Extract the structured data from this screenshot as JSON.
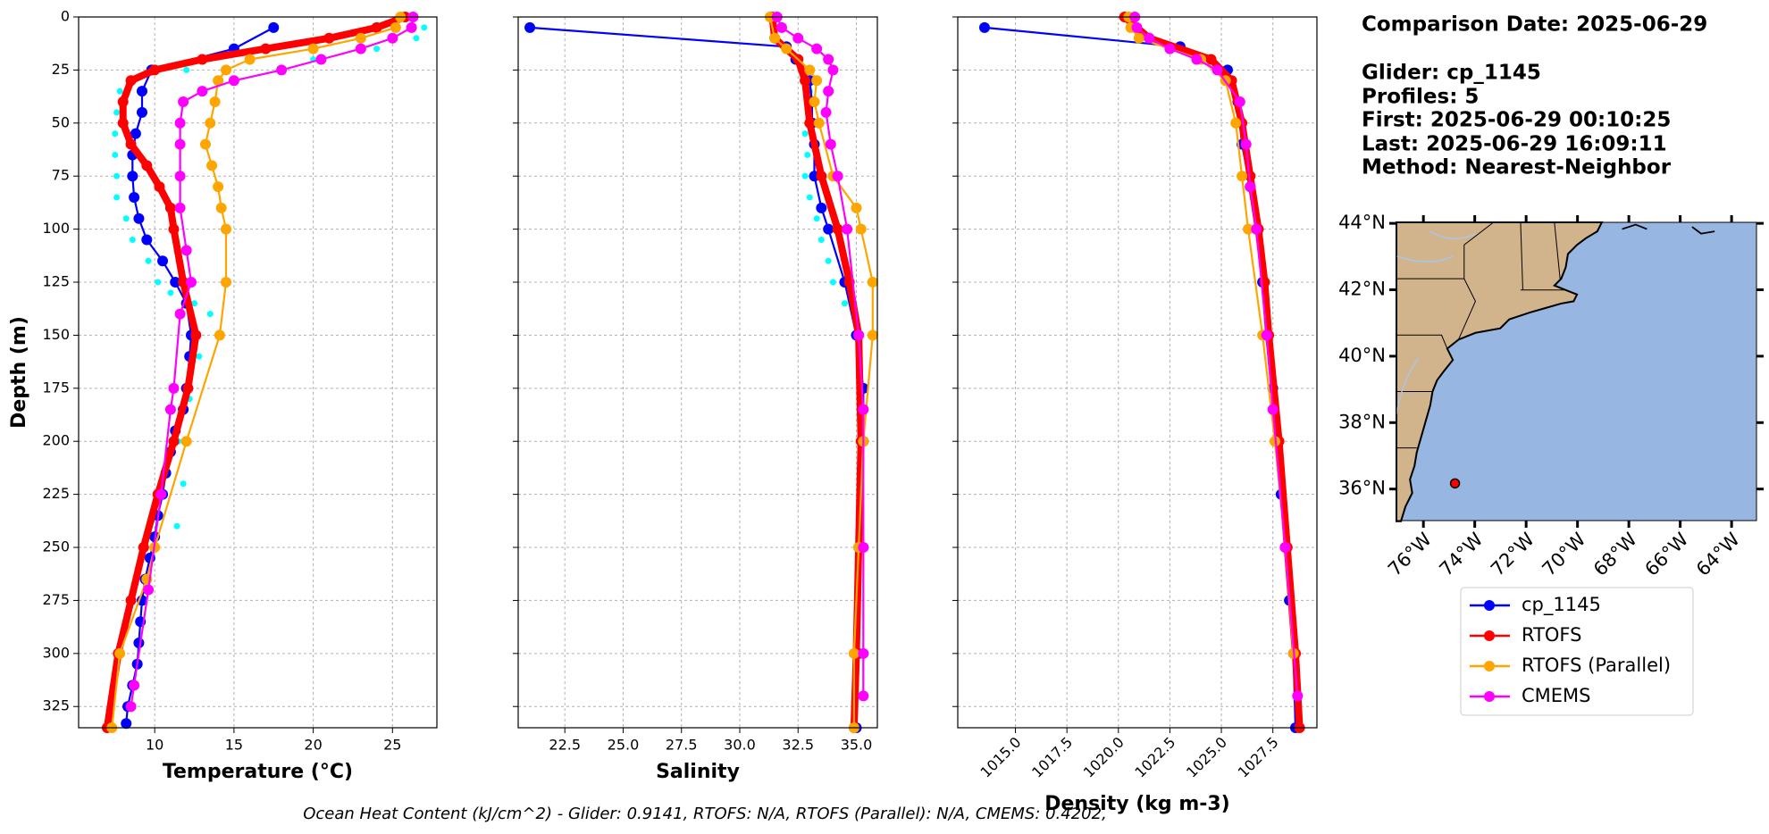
{
  "chart_data": [
    {
      "type": "line",
      "x_label": "Temperature (°C)",
      "y_label": "Depth (m)",
      "xlim": [
        5.2,
        27.8
      ],
      "xticks": [
        10,
        15,
        20,
        25
      ],
      "ylim": [
        335,
        0
      ],
      "yticks": [
        0,
        25,
        50,
        75,
        100,
        125,
        150,
        175,
        200,
        225,
        250,
        275,
        300,
        325
      ],
      "grid": true,
      "xtick_rotation": 0,
      "profile_points": {
        "color": "#00ffff",
        "x": [
          27,
          26.5,
          24,
          20,
          12,
          8.5,
          7.8,
          7.6,
          7.5,
          7.5,
          7.6,
          7.6,
          8.2,
          8.6,
          9.6,
          10.2,
          11,
          12.5,
          13.5,
          12.8,
          12.2,
          11.5,
          11.8,
          11.4
        ],
        "values": [
          5,
          10,
          15,
          20,
          25,
          30,
          35,
          45,
          55,
          65,
          75,
          85,
          95,
          105,
          115,
          125,
          130,
          135,
          140,
          160,
          180,
          200,
          220,
          240
        ]
      },
      "series": [
        {
          "name": "cp_1145",
          "color": "#0000ff",
          "x": [
            17.5,
            15,
            9.8,
            9.2,
            9.2,
            8.8,
            8.6,
            8.6,
            8.7,
            9.0,
            9.5,
            10.5,
            11.3,
            12,
            12.3,
            12.2,
            12,
            11.8,
            11.3,
            11,
            10.7,
            10.5,
            10.2,
            10,
            9.7,
            9.4,
            9.2,
            9.1,
            9.0,
            8.9,
            8.6,
            8.3,
            8.2
          ],
          "values": [
            5,
            15,
            25,
            35,
            45,
            55,
            65,
            75,
            85,
            95,
            105,
            115,
            125,
            135,
            150,
            160,
            175,
            185,
            195,
            205,
            215,
            225,
            235,
            245,
            255,
            265,
            275,
            285,
            295,
            305,
            315,
            325,
            333
          ]
        },
        {
          "name": "RTOFS",
          "color": "#ff0000",
          "x": [
            25.8,
            24,
            21,
            17,
            13,
            10,
            8.5,
            8,
            8,
            8.5,
            9.5,
            10.3,
            11,
            11.2,
            11.8,
            12.6,
            12.1,
            11.2,
            10.2,
            9.3,
            8.5,
            7.7,
            7
          ],
          "values": [
            0,
            5,
            10,
            15,
            20,
            25,
            30,
            40,
            50,
            60,
            70,
            80,
            90,
            100,
            125,
            150,
            175,
            200,
            225,
            250,
            275,
            300,
            335
          ]
        },
        {
          "name": "RTOFS (Parallel)",
          "color": "#ffa500",
          "x": [
            25.5,
            25.2,
            23,
            20,
            16,
            14.5,
            14,
            13.8,
            13.5,
            13.2,
            13.6,
            14,
            14.2,
            14.5,
            14.5,
            14.1,
            12,
            10,
            9.5,
            7.8,
            7.3
          ],
          "values": [
            0,
            5,
            10,
            15,
            20,
            25,
            30,
            40,
            50,
            60,
            70,
            80,
            90,
            100,
            125,
            150,
            200,
            250,
            265,
            300,
            335
          ]
        },
        {
          "name": "CMEMS",
          "color": "#ff00ff",
          "x": [
            26.3,
            26.2,
            25,
            23,
            20.5,
            18,
            15,
            13,
            11.8,
            11.6,
            11.6,
            11.6,
            11.6,
            12,
            12.3,
            11.6,
            11.2,
            11,
            10.4,
            9.6,
            8.7,
            8.5
          ],
          "values": [
            0,
            5,
            10,
            15,
            20,
            25,
            30,
            35,
            40,
            50,
            60,
            75,
            90,
            110,
            125,
            140,
            175,
            185,
            225,
            270,
            315,
            325
          ]
        }
      ]
    },
    {
      "type": "line",
      "x_label": "Salinity",
      "xlim": [
        20.5,
        35.9
      ],
      "xticks": [
        22.5,
        {
          "value": 25,
          "label": "25.0"
        },
        27.5,
        {
          "value": 30,
          "label": "30.0"
        },
        32.5,
        {
          "value": 35,
          "label": "35.0"
        }
      ],
      "ylim": [
        335,
        0
      ],
      "yticks": [
        0,
        25,
        50,
        75,
        100,
        125,
        150,
        175,
        200,
        225,
        250,
        275,
        300,
        325
      ],
      "grid": true,
      "xtick_rotation": 0,
      "profile_points": {
        "color": "#00ffff",
        "x": [
          33,
          33,
          32.8,
          32.9,
          32.8,
          33,
          33.3,
          33.5,
          33.8,
          34,
          34.5
        ],
        "values": [
          35,
          45,
          55,
          65,
          75,
          85,
          95,
          105,
          115,
          125,
          135
        ]
      },
      "series": [
        {
          "name": "cp_1145",
          "color": "#0000ff",
          "x": [
            21.0,
            32.0,
            32.4,
            33,
            33.1,
            33.1,
            33.2,
            33.2,
            33.5,
            33.8,
            34.5,
            35.0,
            35.3,
            35.3,
            35.2,
            35.1,
            35.0
          ],
          "values": [
            5,
            14,
            20,
            30,
            40,
            50,
            60,
            75,
            90,
            100,
            125,
            150,
            175,
            200,
            250,
            300,
            335
          ]
        },
        {
          "name": "RTOFS",
          "color": "#ff0000",
          "x": [
            31.4,
            31.5,
            32.5,
            32.8,
            33.0,
            33.5,
            34.2,
            34.7,
            35.1,
            35.2,
            35.1,
            35.0,
            34.9
          ],
          "values": [
            0,
            10,
            20,
            30,
            50,
            75,
            100,
            125,
            150,
            200,
            250,
            300,
            335
          ]
        },
        {
          "name": "RTOFS (Parallel)",
          "color": "#ffa500",
          "x": [
            31.3,
            31.5,
            32,
            33,
            33.3,
            33.2,
            33.4,
            34,
            35,
            35.2,
            35.7,
            35.7,
            35.3,
            35.1,
            34.9,
            34.9
          ],
          "values": [
            0,
            10,
            15,
            25,
            30,
            40,
            50,
            75,
            90,
            100,
            125,
            150,
            200,
            250,
            300,
            335
          ]
        },
        {
          "name": "CMEMS",
          "color": "#ff00ff",
          "x": [
            31.6,
            31.8,
            32.5,
            33.3,
            33.8,
            34.0,
            33.8,
            33.7,
            33.9,
            34.2,
            34.6,
            35.1,
            35.3,
            35.3,
            35.3,
            35.3
          ],
          "values": [
            0,
            5,
            10,
            15,
            20,
            25,
            35,
            45,
            60,
            75,
            100,
            150,
            185,
            250,
            300,
            320
          ]
        }
      ]
    },
    {
      "type": "line",
      "x_label": "Density (kg m-3)",
      "xlim": [
        1012.2,
        1029.64
      ],
      "xticks": [
        {
          "value": 1015,
          "label": "1015.0"
        },
        1017.5,
        {
          "value": 1020,
          "label": "1020.0"
        },
        1022.5,
        {
          "value": 1025,
          "label": "1025.0"
        },
        1027.5
      ],
      "ylim": [
        335,
        0
      ],
      "yticks": [
        0,
        25,
        50,
        75,
        100,
        125,
        150,
        175,
        200,
        225,
        250,
        275,
        300,
        325
      ],
      "grid": true,
      "xtick_rotation": 45,
      "series": [
        {
          "name": "cp_1145",
          "color": "#0000ff",
          "x": [
            1013.5,
            1023.0,
            1025.3,
            1025.8,
            1026.0,
            1026.4,
            1026.7,
            1027.0,
            1027.2,
            1027.5,
            1027.7,
            1027.9,
            1028.1,
            1028.3,
            1028.5,
            1028.6
          ],
          "values": [
            5,
            14,
            25,
            40,
            60,
            80,
            100,
            125,
            150,
            175,
            200,
            225,
            250,
            275,
            300,
            335
          ]
        },
        {
          "name": "RTOFS",
          "color": "#ff0000",
          "x": [
            1020.3,
            1021.5,
            1024.5,
            1025.5,
            1026.0,
            1026.4,
            1026.8,
            1027.1,
            1027.3,
            1027.8,
            1028.2,
            1028.6,
            1028.8
          ],
          "values": [
            0,
            10,
            20,
            30,
            50,
            75,
            100,
            125,
            150,
            200,
            250,
            300,
            335
          ]
        },
        {
          "name": "RTOFS (Parallel)",
          "color": "#ffa500",
          "x": [
            1020.5,
            1020.6,
            1021.0,
            1024.0,
            1025.2,
            1025.7,
            1026.0,
            1026.3,
            1027.0,
            1027.6,
            1028.1,
            1028.5
          ],
          "values": [
            0,
            5,
            10,
            20,
            30,
            50,
            75,
            100,
            150,
            200,
            250,
            300
          ]
        },
        {
          "name": "CMEMS",
          "color": "#ff00ff",
          "x": [
            1020.8,
            1020.9,
            1021.5,
            1022.5,
            1023.8,
            1024.8,
            1025.9,
            1026.2,
            1026.4,
            1026.7,
            1027.2,
            1027.5,
            1028.1,
            1028.7
          ],
          "values": [
            0,
            5,
            10,
            15,
            20,
            25,
            40,
            60,
            80,
            100,
            150,
            185,
            250,
            320
          ]
        }
      ]
    }
  ],
  "info": {
    "comparison_date": "Comparison Date: 2025-06-29",
    "glider": "Glider: cp_1145",
    "profiles": "Profiles: 5",
    "first": "First: 2025-06-29 00:10:25",
    "last": "Last: 2025-06-29 16:09:11",
    "method": "Method: Nearest-Neighbor"
  },
  "map": {
    "lonlim": [
      -77.05,
      -63.03
    ],
    "latlim": [
      35.05,
      44.03
    ],
    "lat_ticks": [
      {
        "value": 36,
        "label": "36°N"
      },
      {
        "value": 38,
        "label": "38°N"
      },
      {
        "value": 40,
        "label": "40°N"
      },
      {
        "value": 42,
        "label": "42°N"
      },
      {
        "value": 44,
        "label": "44°N"
      }
    ],
    "lon_ticks": [
      {
        "value": -76,
        "label": "76°W"
      },
      {
        "value": -74,
        "label": "74°W"
      },
      {
        "value": -72,
        "label": "72°W"
      },
      {
        "value": -70,
        "label": "70°W"
      },
      {
        "value": -68,
        "label": "68°W"
      },
      {
        "value": -66,
        "label": "66°W"
      },
      {
        "value": -64,
        "label": "64°W"
      }
    ],
    "marker": {
      "lon": -74.77,
      "lat": 36.17,
      "color": "#ff0000"
    }
  },
  "footer": "Ocean Heat Content (kJ/cm^2) - Glider: 0.9141,  RTOFS: N/A,  RTOFS (Parallel): N/A,  CMEMS: 0.4202,"
}
